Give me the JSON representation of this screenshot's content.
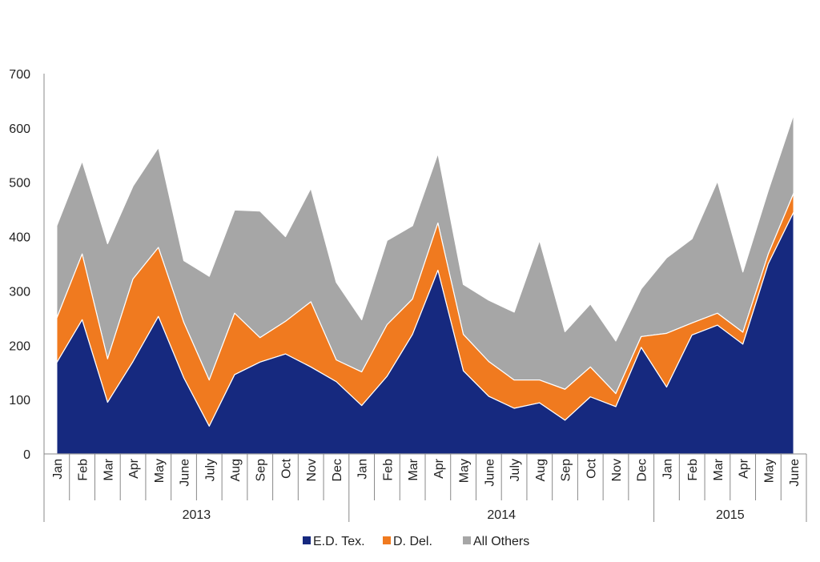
{
  "chart_data": {
    "type": "area",
    "stacked": true,
    "ylim": [
      0,
      700
    ],
    "yticks": [
      0,
      100,
      200,
      300,
      400,
      500,
      600,
      700
    ],
    "categories": [
      "Jan",
      "Feb",
      "Mar",
      "Apr",
      "May",
      "June",
      "July",
      "Aug",
      "Sep",
      "Oct",
      "Nov",
      "Dec",
      "Jan",
      "Feb",
      "Mar",
      "Apr",
      "May",
      "June",
      "July",
      "Aug",
      "Sep",
      "Oct",
      "Nov",
      "Dec",
      "Jan",
      "Feb",
      "Mar",
      "Apr",
      "May",
      "June"
    ],
    "groups": [
      {
        "label": "2013",
        "count": 12
      },
      {
        "label": "2014",
        "count": 12
      },
      {
        "label": "2015",
        "count": 6
      }
    ],
    "series": [
      {
        "name": "E.D. Tex.",
        "color": "#16297F",
        "values": [
          168,
          247,
          95,
          170,
          253,
          140,
          51,
          146,
          169,
          184,
          160,
          133,
          89,
          143,
          220,
          338,
          153,
          106,
          84,
          94,
          62,
          105,
          87,
          196,
          123,
          219,
          237,
          202,
          350,
          445
        ]
      },
      {
        "name": "D. Del.",
        "color": "#F07A1F",
        "values": [
          82,
          121,
          80,
          152,
          127,
          102,
          85,
          113,
          45,
          60,
          120,
          40,
          62,
          95,
          65,
          87,
          67,
          64,
          52,
          42,
          57,
          55,
          24,
          20,
          99,
          22,
          22,
          22,
          18,
          35
        ]
      },
      {
        "name": "All Others",
        "color": "#A6A6A6",
        "values": [
          170,
          171,
          212,
          171,
          184,
          114,
          191,
          190,
          233,
          156,
          209,
          143,
          96,
          155,
          135,
          128,
          92,
          113,
          125,
          257,
          106,
          116,
          97,
          88,
          139,
          155,
          243,
          111,
          117,
          145
        ]
      }
    ],
    "legend_position": "bottom",
    "grid": false,
    "xlabel": "",
    "ylabel": "",
    "title": ""
  }
}
